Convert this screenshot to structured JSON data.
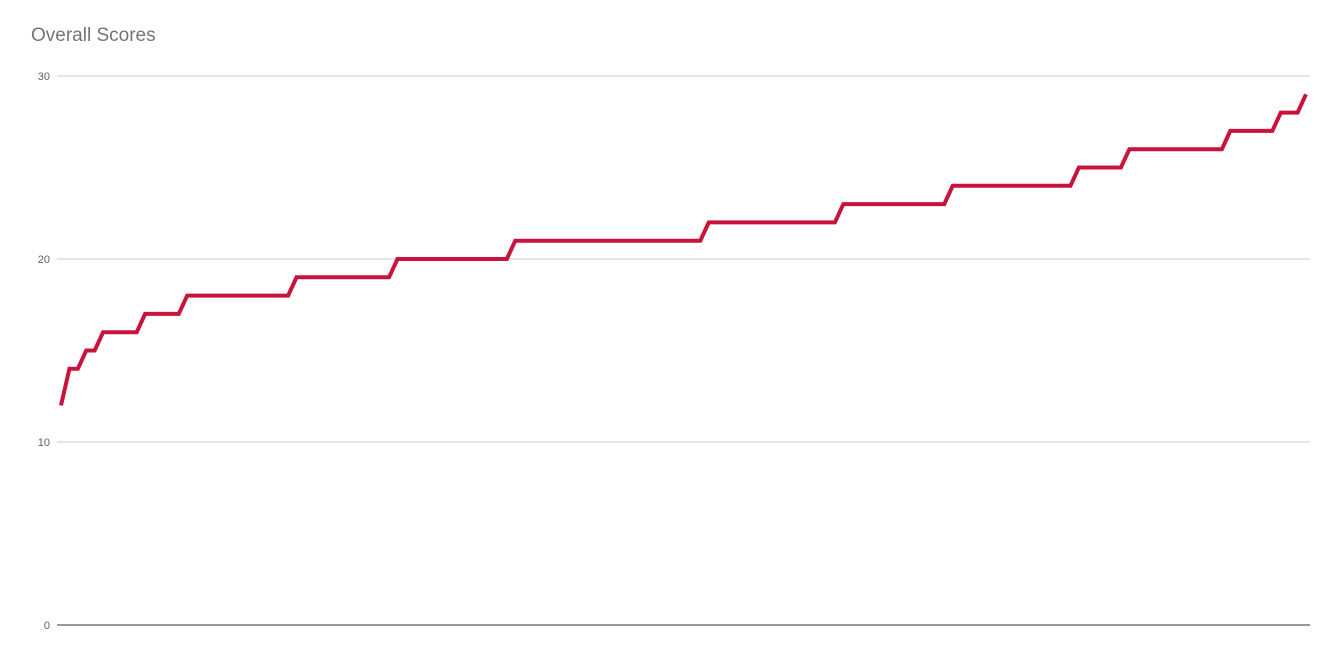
{
  "chart_data": {
    "type": "line",
    "title": "Overall Scores",
    "xlabel": "",
    "ylabel": "",
    "ylim": [
      0,
      30
    ],
    "yticks": [
      0,
      10,
      20,
      30
    ],
    "grid": true,
    "legend": "none",
    "series": [
      {
        "color": "#c8143c",
        "values": [
          12,
          14,
          14,
          15,
          15,
          16,
          16,
          16,
          16,
          16,
          17,
          17,
          17,
          17,
          17,
          18,
          18,
          18,
          18,
          18,
          18,
          18,
          18,
          18,
          18,
          18,
          18,
          18,
          19,
          19,
          19,
          19,
          19,
          19,
          19,
          19,
          19,
          19,
          19,
          19,
          20,
          20,
          20,
          20,
          20,
          20,
          20,
          20,
          20,
          20,
          20,
          20,
          20,
          20,
          21,
          21,
          21,
          21,
          21,
          21,
          21,
          21,
          21,
          21,
          21,
          21,
          21,
          21,
          21,
          21,
          21,
          21,
          21,
          21,
          21,
          21,
          21,
          22,
          22,
          22,
          22,
          22,
          22,
          22,
          22,
          22,
          22,
          22,
          22,
          22,
          22,
          22,
          22,
          23,
          23,
          23,
          23,
          23,
          23,
          23,
          23,
          23,
          23,
          23,
          23,
          23,
          24,
          24,
          24,
          24,
          24,
          24,
          24,
          24,
          24,
          24,
          24,
          24,
          24,
          24,
          24,
          25,
          25,
          25,
          25,
          25,
          25,
          26,
          26,
          26,
          26,
          26,
          26,
          26,
          26,
          26,
          26,
          26,
          26,
          27,
          27,
          27,
          27,
          27,
          27,
          28,
          28,
          28,
          29
        ]
      }
    ]
  }
}
